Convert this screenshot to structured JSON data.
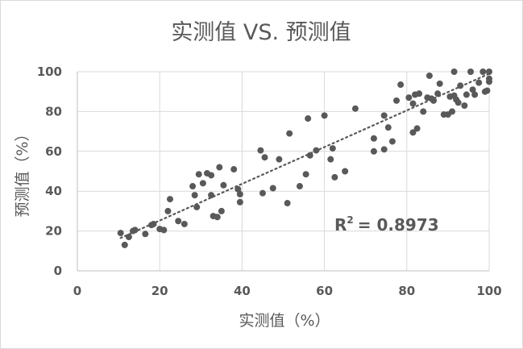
{
  "chart_data": {
    "type": "scatter",
    "title": "实测值 VS. 预测值",
    "xlabel": "实测值（%）",
    "ylabel": "预测值（%）",
    "xlim": [
      0,
      100
    ],
    "ylim": [
      0,
      100
    ],
    "x_ticks": [
      "0",
      "20",
      "40",
      "60",
      "80",
      "100"
    ],
    "y_ticks": [
      "0",
      "20",
      "40",
      "60",
      "80",
      "100"
    ],
    "grid": true,
    "legend": "none",
    "point_color": "#595959",
    "trendline": {
      "type": "linear",
      "style": "dotted",
      "color": "#595959",
      "from": [
        10.5,
        16.5
      ],
      "to": [
        100,
        99
      ]
    },
    "annotation": {
      "r2_label": "R",
      "r2_sup": "2",
      "r2_value": "= 0.8973"
    },
    "points": [
      [
        10.5,
        19
      ],
      [
        11.5,
        13
      ],
      [
        12.5,
        17
      ],
      [
        13.5,
        20
      ],
      [
        14,
        20.5
      ],
      [
        16.5,
        18.5
      ],
      [
        18,
        23
      ],
      [
        18.5,
        23.5
      ],
      [
        20,
        21
      ],
      [
        21,
        20.5
      ],
      [
        22,
        30
      ],
      [
        22.5,
        36
      ],
      [
        24.5,
        25
      ],
      [
        26,
        23.5
      ],
      [
        28,
        42.5
      ],
      [
        28.5,
        38
      ],
      [
        29,
        32
      ],
      [
        29.5,
        48.5
      ],
      [
        30.5,
        44
      ],
      [
        31.5,
        49
      ],
      [
        32.5,
        48
      ],
      [
        32.5,
        38
      ],
      [
        33,
        27.5
      ],
      [
        34,
        27
      ],
      [
        34.5,
        52
      ],
      [
        35,
        30
      ],
      [
        35.5,
        43
      ],
      [
        38,
        51
      ],
      [
        39,
        41
      ],
      [
        39.5,
        34.5
      ],
      [
        39.5,
        38.5
      ],
      [
        44.5,
        60.5
      ],
      [
        45.5,
        57
      ],
      [
        45,
        39
      ],
      [
        47.5,
        41.5
      ],
      [
        49,
        56
      ],
      [
        51,
        34
      ],
      [
        51.5,
        69
      ],
      [
        54,
        42.5
      ],
      [
        55.5,
        48.5
      ],
      [
        56,
        76.5
      ],
      [
        56.5,
        58
      ],
      [
        58,
        60.5
      ],
      [
        60,
        78
      ],
      [
        61.5,
        56
      ],
      [
        62,
        61.5
      ],
      [
        62.5,
        47
      ],
      [
        65,
        50
      ],
      [
        67.5,
        81.5
      ],
      [
        72,
        60
      ],
      [
        72,
        66.5
      ],
      [
        74.5,
        61
      ],
      [
        74.5,
        78
      ],
      [
        75.5,
        72
      ],
      [
        76.5,
        65
      ],
      [
        77.5,
        85.5
      ],
      [
        78.5,
        93.5
      ],
      [
        80.5,
        87
      ],
      [
        81.5,
        69.5
      ],
      [
        81.5,
        84
      ],
      [
        82,
        88.5
      ],
      [
        82.5,
        71.5
      ],
      [
        83,
        89
      ],
      [
        84,
        80
      ],
      [
        85,
        87
      ],
      [
        85.5,
        98
      ],
      [
        86,
        86.5
      ],
      [
        86.5,
        85.5
      ],
      [
        87.5,
        89
      ],
      [
        88,
        94
      ],
      [
        89,
        78.5
      ],
      [
        90,
        78.5
      ],
      [
        90.5,
        87.5
      ],
      [
        91,
        80
      ],
      [
        91.5,
        88
      ],
      [
        91.5,
        100
      ],
      [
        92,
        86
      ],
      [
        92.5,
        84.5
      ],
      [
        93,
        93
      ],
      [
        94,
        83
      ],
      [
        94.5,
        88.5
      ],
      [
        95.5,
        100
      ],
      [
        96,
        91
      ],
      [
        96.5,
        88.5
      ],
      [
        97.5,
        94.5
      ],
      [
        98.5,
        100
      ],
      [
        99,
        90
      ],
      [
        99.5,
        90.5
      ],
      [
        100,
        100
      ],
      [
        100,
        95
      ],
      [
        100,
        96.5
      ]
    ]
  }
}
